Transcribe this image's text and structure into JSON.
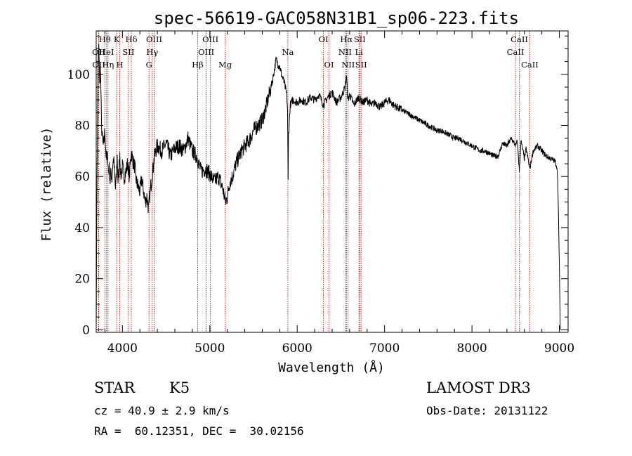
{
  "chart_data": {
    "type": "line",
    "title": "spec-56619-GAC058N31B1_sp06-223.fits",
    "xlabel": "Wavelength (Å)",
    "ylabel": "Flux (relative)",
    "xlim": [
      3700,
      9100
    ],
    "ylim": [
      -1,
      117
    ],
    "xticks": [
      4000,
      5000,
      6000,
      7000,
      8000,
      9000
    ],
    "yticks": [
      0,
      20,
      40,
      60,
      80,
      100
    ],
    "grid": false,
    "series": [
      {
        "x": [
          3700,
          3705,
          3710,
          3715,
          3720,
          3725,
          3730,
          3740,
          3750,
          3760,
          3770,
          3780,
          3790,
          3800,
          3810,
          3820,
          3830,
          3840,
          3850,
          3860,
          3870,
          3880,
          3890,
          3900,
          3920,
          3930,
          3940,
          3950,
          3960,
          3970,
          3980,
          4000,
          4020,
          4040,
          4060,
          4080,
          4100,
          4120,
          4140,
          4160,
          4180,
          4200,
          4220,
          4240,
          4260,
          4280,
          4300,
          4320,
          4340,
          4360,
          4380,
          4400,
          4450,
          4500,
          4550,
          4600,
          4650,
          4700,
          4750,
          4800,
          4850,
          4900,
          4950,
          5000,
          5050,
          5100,
          5150,
          5180,
          5200,
          5230,
          5260,
          5300,
          5350,
          5400,
          5450,
          5500,
          5550,
          5600,
          5650,
          5700,
          5720,
          5740,
          5760,
          5780,
          5800,
          5820,
          5850,
          5880,
          5890,
          5893,
          5896,
          5900,
          5920,
          5950,
          6000,
          6050,
          6100,
          6150,
          6200,
          6250,
          6300,
          6350,
          6400,
          6450,
          6500,
          6550,
          6563,
          6580,
          6600,
          6650,
          6700,
          6750,
          6800,
          6850,
          6900,
          6950,
          7000,
          7050,
          7100,
          7150,
          7200,
          7250,
          7300,
          7350,
          7400,
          7450,
          7500,
          7550,
          7600,
          7650,
          7700,
          7750,
          7800,
          7850,
          7900,
          7950,
          8000,
          8050,
          8100,
          8150,
          8200,
          8250,
          8300,
          8350,
          8400,
          8450,
          8500,
          8520,
          8542,
          8560,
          8600,
          8620,
          8662,
          8700,
          8750,
          8800,
          8850,
          8900,
          8950,
          8970,
          8980,
          8990,
          9000,
          9010
        ],
        "y": [
          0,
          35,
          60,
          85,
          100,
          108,
          112,
          95,
          102,
          80,
          75,
          72,
          74,
          78,
          70,
          66,
          68,
          62,
          63,
          58,
          62,
          59,
          65,
          67,
          55,
          60,
          68,
          58,
          62,
          70,
          60,
          64,
          60,
          62,
          65,
          60,
          70,
          66,
          64,
          58,
          56,
          54,
          59,
          55,
          50,
          52,
          47,
          55,
          60,
          66,
          70,
          72,
          70,
          73,
          68,
          71,
          72,
          70,
          75,
          70,
          68,
          62,
          63,
          61,
          58,
          60,
          55,
          50,
          52,
          58,
          60,
          65,
          69,
          72,
          74,
          78,
          80,
          82,
          88,
          95,
          98,
          102,
          106,
          104,
          103,
          100,
          97,
          92,
          86,
          70,
          58,
          75,
          88,
          90,
          89,
          90,
          89,
          91,
          90,
          92,
          88,
          91,
          93,
          89,
          91,
          95,
          100,
          90,
          92,
          88,
          91,
          89,
          90,
          88,
          89,
          87,
          89,
          90,
          88,
          87,
          86,
          85,
          84,
          83,
          82,
          81,
          80,
          79,
          78,
          78,
          77,
          76,
          75,
          75,
          74,
          73,
          72,
          71,
          70,
          70,
          69,
          68,
          68,
          73,
          72,
          75,
          72,
          74,
          62,
          74,
          67,
          71,
          63,
          70,
          72,
          70,
          68,
          67,
          66,
          64,
          60,
          45,
          25,
          0
        ]
      }
    ],
    "lines": [
      {
        "label": "Hθ",
        "x": 3798,
        "row": 1
      },
      {
        "label": "OII",
        "x": 3727,
        "row": 2
      },
      {
        "label": "HeI",
        "x": 3819,
        "row": 2
      },
      {
        "label": "OII",
        "x": 3729,
        "row": 3
      },
      {
        "label": "Hη",
        "x": 3835,
        "row": 3
      },
      {
        "label": "K",
        "x": 3934,
        "row": 1
      },
      {
        "label": "SII",
        "x": 4069,
        "row": 2
      },
      {
        "label": "H",
        "x": 3969,
        "row": 3
      },
      {
        "label": "Hδ",
        "x": 4102,
        "row": 1
      },
      {
        "label": "OIII",
        "x": 4363,
        "row": 1
      },
      {
        "label": "Hγ",
        "x": 4341,
        "row": 2
      },
      {
        "label": "G",
        "x": 4304,
        "row": 3
      },
      {
        "label": "Hβ",
        "x": 4861,
        "row": 3
      },
      {
        "label": "OIII",
        "x": 5007,
        "row": 1
      },
      {
        "label": "OIII",
        "x": 4959,
        "row": 2
      },
      {
        "label": "Mg",
        "x": 5175,
        "row": 3
      },
      {
        "label": "Na",
        "x": 5893,
        "row": 2
      },
      {
        "label": "OI",
        "x": 6300,
        "row": 1
      },
      {
        "label": "OI",
        "x": 6364,
        "row": 3
      },
      {
        "label": "Hα",
        "x": 6563,
        "row": 1
      },
      {
        "label": "SII",
        "x": 6716,
        "row": 1
      },
      {
        "label": "NII",
        "x": 6548,
        "row": 2
      },
      {
        "label": "Li",
        "x": 6707,
        "row": 2
      },
      {
        "label": "NII",
        "x": 6583,
        "row": 3
      },
      {
        "label": "SII",
        "x": 6731,
        "row": 3
      },
      {
        "label": "CaII",
        "x": 8542,
        "row": 1
      },
      {
        "label": "CaII",
        "x": 8498,
        "row": 2
      },
      {
        "label": "CaII",
        "x": 8662,
        "row": 3
      }
    ],
    "line_color": "#a00000",
    "spectrum_color": "#000000"
  },
  "info": {
    "object_class": "STAR",
    "subclass": "K5",
    "survey": "LAMOST DR3",
    "redshift": "cz = 40.9 ± 2.9 km/s",
    "obs_date": "Obs-Date: 20131122",
    "coords": "RA =  60.12351, DEC =  30.02156"
  }
}
